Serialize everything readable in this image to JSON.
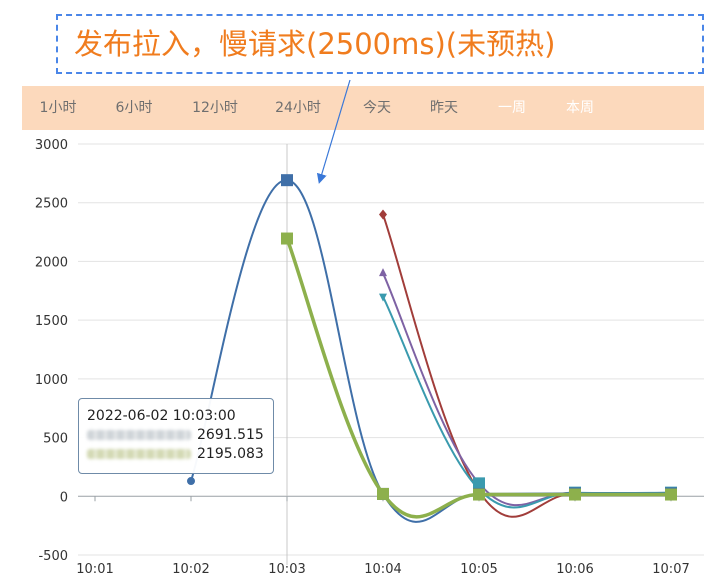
{
  "title": "发布拉入，慢请求(2500ms)(未预热)",
  "range_tabs": [
    {
      "label": "1小时",
      "active": true
    },
    {
      "label": "6小时",
      "active": true
    },
    {
      "label": "12小时",
      "active": true
    },
    {
      "label": "24小时",
      "active": true
    },
    {
      "label": "今天",
      "active": true
    },
    {
      "label": "昨天",
      "active": true
    },
    {
      "label": "一周",
      "active": false
    },
    {
      "label": "本周",
      "active": false
    }
  ],
  "tooltip": {
    "time": "2022-06-02 10:03:00",
    "rows": [
      {
        "value": "2691.515",
        "color": "#3f6fa8"
      },
      {
        "value": "2195.083",
        "color": "#8db04c"
      }
    ]
  },
  "chart_data": {
    "type": "line",
    "title": "",
    "xlabel": "",
    "ylabel": "",
    "x": [
      "10:01",
      "10:02",
      "10:03",
      "10:04",
      "10:05",
      "10:06",
      "10:07"
    ],
    "ylim": [
      -500,
      3000
    ],
    "yticks": [
      3000,
      2500,
      2000,
      1500,
      1000,
      500,
      0,
      -500
    ],
    "grid": true,
    "series": [
      {
        "color": "#3f6fa8",
        "marker": "circle",
        "points": [
          [
            "10:02",
            130
          ],
          [
            "10:03",
            2692
          ],
          [
            "10:04",
            20
          ],
          [
            "10:05",
            20
          ],
          [
            "10:06",
            25
          ],
          [
            "10:07",
            25
          ]
        ]
      },
      {
        "color": "#8db04c",
        "marker": "square",
        "points": [
          [
            "10:03",
            2195
          ],
          [
            "10:04",
            20
          ],
          [
            "10:05",
            15
          ],
          [
            "10:06",
            15
          ],
          [
            "10:07",
            15
          ]
        ]
      },
      {
        "color": "#a13d3a",
        "marker": "diamond",
        "points": [
          [
            "10:04",
            2400
          ],
          [
            "10:05",
            40
          ],
          [
            "10:06",
            25
          ],
          [
            "10:07",
            25
          ]
        ]
      },
      {
        "color": "#7e62a4",
        "marker": "triangle",
        "points": [
          [
            "10:04",
            1900
          ],
          [
            "10:05",
            110
          ],
          [
            "10:06",
            30
          ],
          [
            "10:07",
            30
          ]
        ]
      },
      {
        "color": "#3a9aae",
        "marker": "triangle-down",
        "points": [
          [
            "10:04",
            1700
          ],
          [
            "10:05",
            60
          ],
          [
            "10:06",
            30
          ],
          [
            "10:07",
            30
          ]
        ]
      }
    ],
    "crosshair_x": "10:03"
  }
}
